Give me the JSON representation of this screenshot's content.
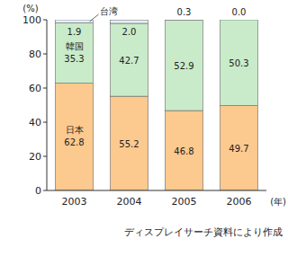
{
  "chart_data": {
    "type": "bar",
    "stacked": true,
    "data_labels": true,
    "ylabel": "(%)",
    "xlabel": "(年)",
    "annotations": [
      "ディスプレイサーチ資料により作成"
    ],
    "categories": [
      "2003",
      "2004",
      "2005",
      "2006"
    ],
    "series": [
      {
        "name": "日本",
        "color": "#fcc98e",
        "values": [
          62.8,
          55.2,
          46.8,
          49.7
        ]
      },
      {
        "name": "韓国",
        "color": "#c9ebc9",
        "values": [
          35.3,
          42.7,
          52.9,
          50.3
        ]
      },
      {
        "name": "台湾",
        "color": "#e6eff8",
        "values": [
          1.9,
          2.0,
          0.3,
          0.0
        ],
        "value_labels": [
          "1.9",
          "2.0",
          "0.3",
          "0.0"
        ]
      }
    ],
    "ylim": [
      0,
      100
    ],
    "yticks": [
      0,
      20,
      40,
      60,
      80,
      100
    ],
    "grid": false
  }
}
